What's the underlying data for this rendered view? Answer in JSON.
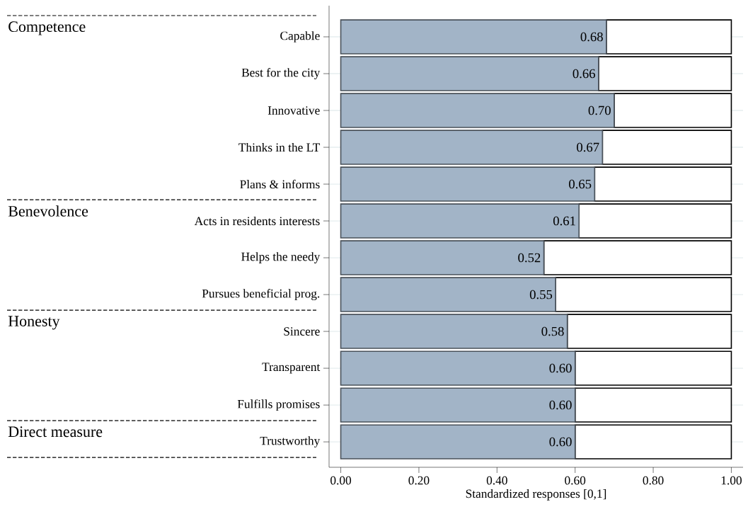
{
  "chart_data": {
    "type": "bar",
    "orientation": "horizontal",
    "stacked": true,
    "xlabel": "Standardized responses [0,1]",
    "categories": [
      "Capable",
      "Best for the city",
      "Innovative",
      "Thinks in the LT",
      "Plans & informs",
      "Acts in residents interests",
      "Helps the needy",
      "Pursues beneficial prog.",
      "Sincere",
      "Transparent",
      "Fulfills promises",
      "Trustworthy"
    ],
    "series": [
      {
        "color": "#a2b4c7",
        "values": [
          0.68,
          0.66,
          0.7,
          0.67,
          0.65,
          0.61,
          0.52,
          0.55,
          0.58,
          0.6,
          0.6,
          0.6
        ],
        "value_labels": [
          "0.68",
          "0.66",
          "0.70",
          "0.67",
          "0.65",
          "0.61",
          "0.52",
          "0.55",
          "0.58",
          "0.60",
          "0.60",
          "0.60"
        ]
      },
      {
        "color": "#ffffff",
        "values": [
          0.32,
          0.34,
          0.3,
          0.33,
          0.35,
          0.39,
          0.48,
          0.45,
          0.42,
          0.4,
          0.4,
          0.4
        ]
      }
    ],
    "xlim": [
      -0.03,
      1.03
    ],
    "xticks": [
      {
        "value": 0,
        "label": "0.00"
      },
      {
        "value": 0.2,
        "label": "0.20"
      },
      {
        "value": 0.4,
        "label": "0.40"
      },
      {
        "value": 0.6,
        "label": "0.60"
      },
      {
        "value": 0.8,
        "label": "0.80"
      },
      {
        "value": 1,
        "label": "1.00"
      }
    ],
    "grid": "y",
    "annotations": [
      "Competence",
      "Benevolence",
      "Honesty",
      "Direct measure"
    ]
  }
}
